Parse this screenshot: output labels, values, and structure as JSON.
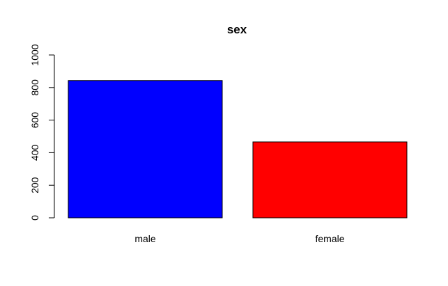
{
  "chart_data": {
    "type": "bar",
    "title": "sex",
    "xlabel": "",
    "ylabel": "",
    "categories": [
      "male",
      "female"
    ],
    "values": [
      843,
      466
    ],
    "colors": [
      "#0000FF",
      "#FF0000"
    ],
    "ylim": [
      0,
      1000
    ],
    "yticks": [
      0,
      200,
      400,
      600,
      800,
      1000
    ],
    "ytick_labels": [
      "0",
      "200",
      "400",
      "600",
      "800",
      "1000"
    ],
    "grid": false,
    "legend": "none"
  }
}
